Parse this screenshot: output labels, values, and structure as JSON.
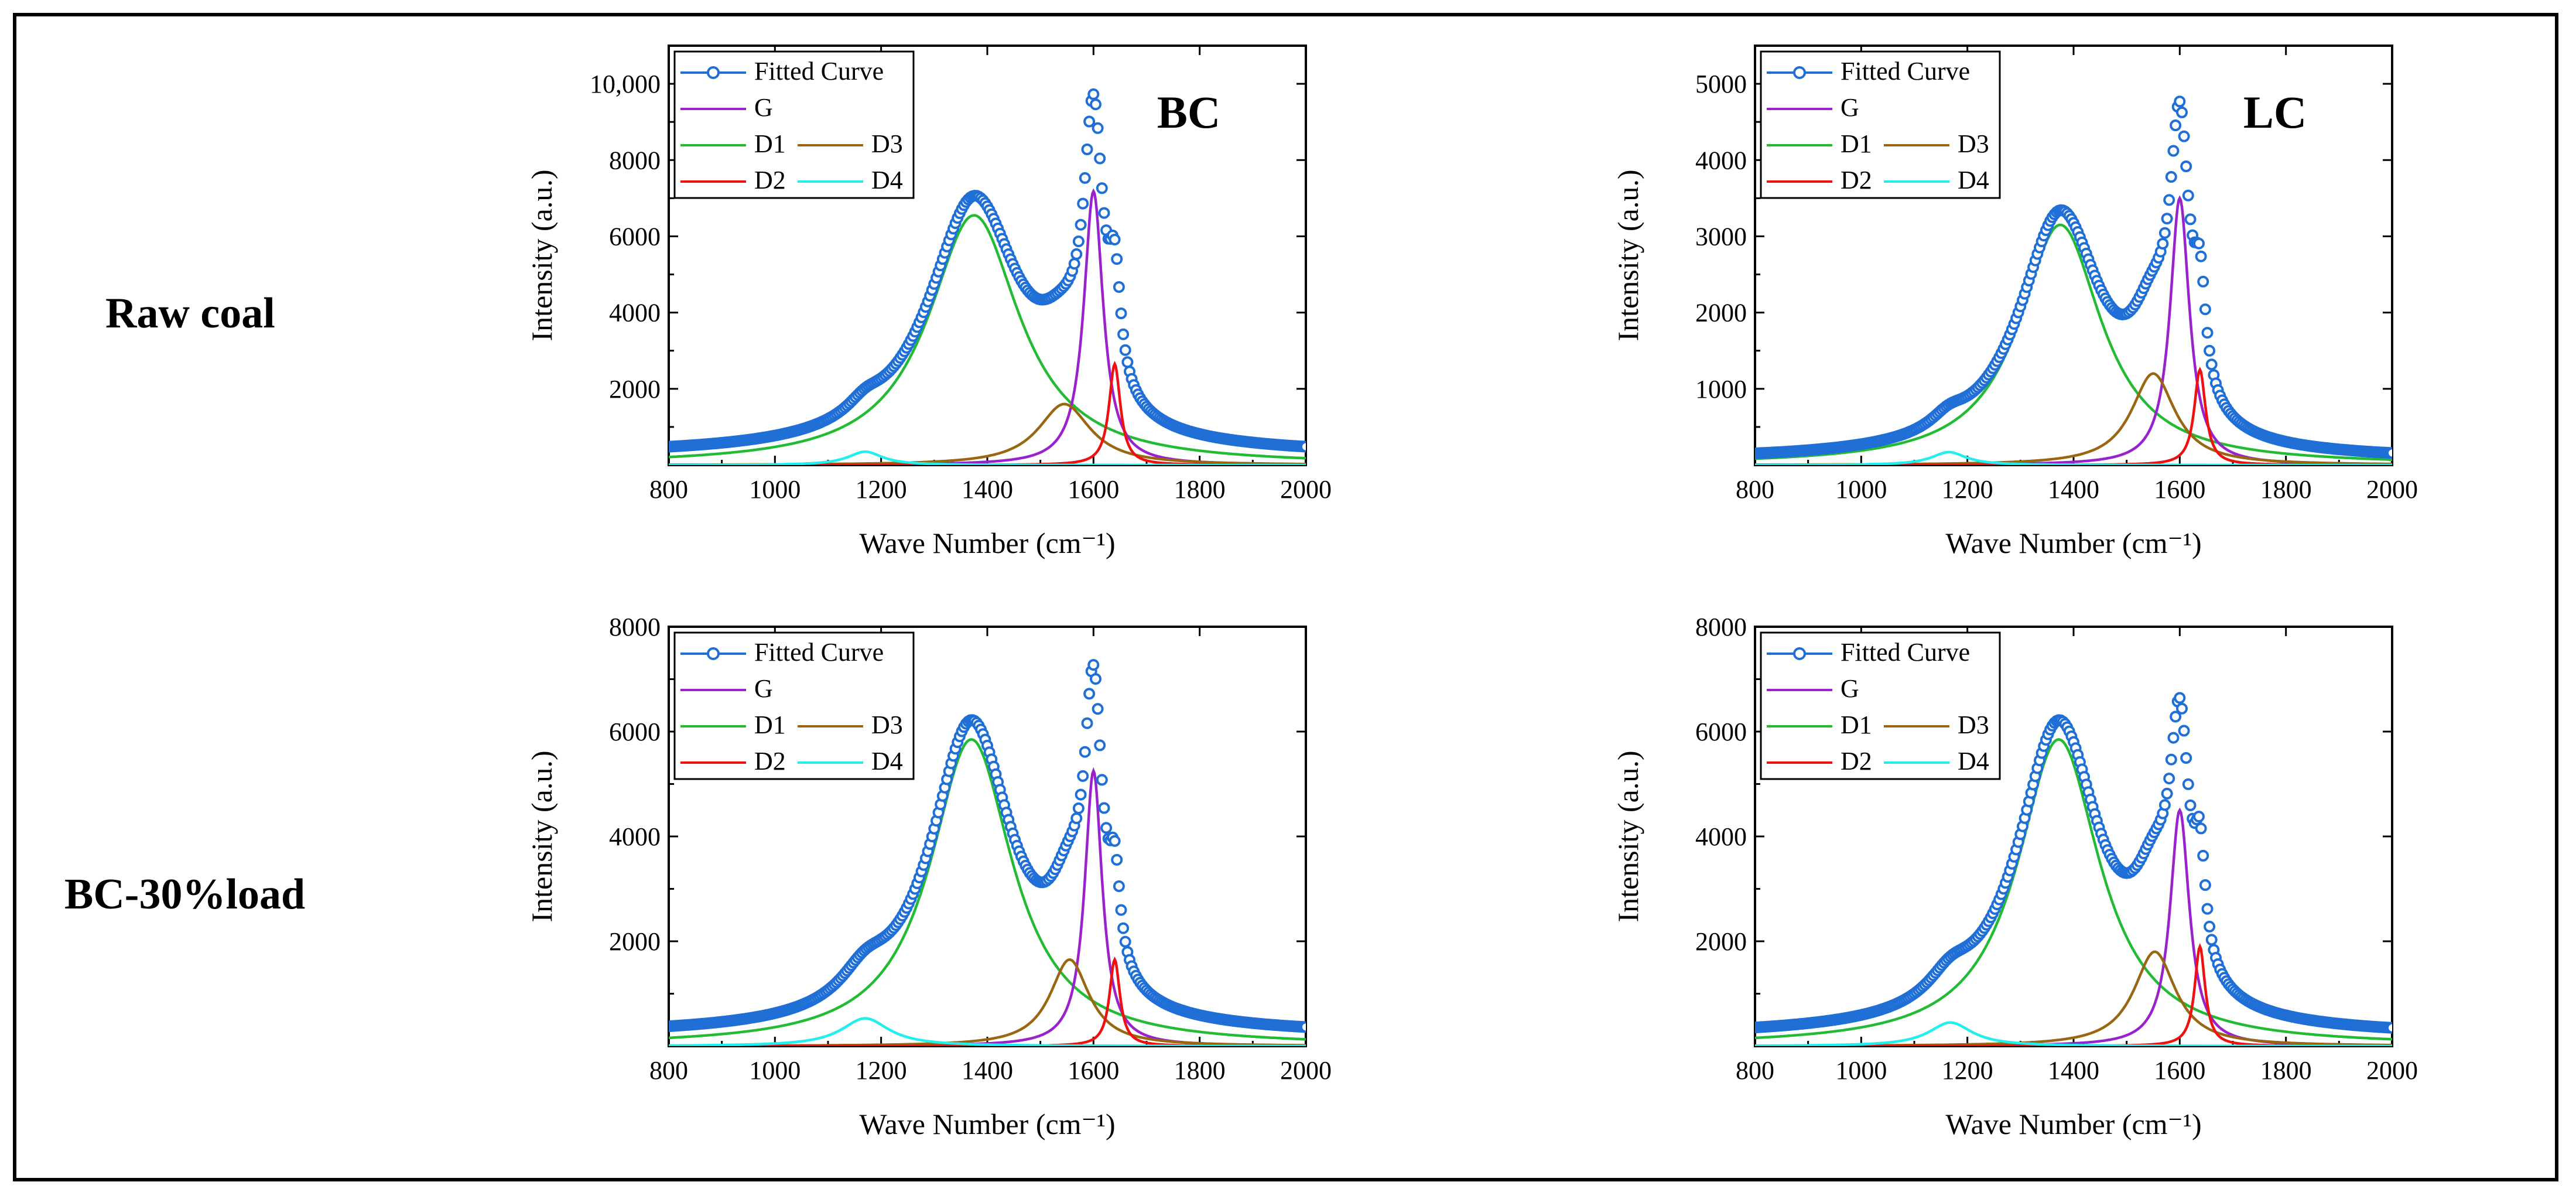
{
  "row_labels": [
    "Raw coal",
    "BC-30%load"
  ],
  "chart_data": [
    {
      "type": "line",
      "panel_label": "BC",
      "row": "Raw coal",
      "xlabel": "Wave Number (cm⁻¹)",
      "ylabel": "Intensity (a.u.)",
      "xlim": [
        800,
        2000
      ],
      "ylim": [
        0,
        11000
      ],
      "x_ticks": [
        800,
        1000,
        1200,
        1400,
        1600,
        1800,
        2000
      ],
      "y_ticks": [
        2000,
        4000,
        6000,
        8000,
        10000
      ],
      "y_tick_labels": [
        "2000",
        "4000",
        "6000",
        "8000",
        "10,000"
      ],
      "baseline": 250,
      "legend": [
        "Fitted Curve",
        "G",
        "D1",
        "D3",
        "D2",
        "D4"
      ],
      "legend_position": "top-left",
      "series": [
        {
          "name": "D1",
          "color": "#22bb33",
          "center": 1375,
          "amplitude": 6550,
          "hwhm": 105
        },
        {
          "name": "G",
          "color": "#9922cc",
          "center": 1600,
          "amplitude": 7180,
          "hwhm": 22
        },
        {
          "name": "D3",
          "color": "#996611",
          "center": 1545,
          "amplitude": 1600,
          "hwhm": 60
        },
        {
          "name": "D2",
          "color": "#ee1111",
          "center": 1640,
          "amplitude": 2650,
          "hwhm": 13
        },
        {
          "name": "D4",
          "color": "#22eeee",
          "center": 1170,
          "amplitude": 350,
          "hwhm": 40
        }
      ],
      "fitted_color": "#1f6fd6"
    },
    {
      "type": "line",
      "panel_label": "LC",
      "row": "Raw coal",
      "xlabel": "Wave Number (cm⁻¹)",
      "ylabel": "Intensity (a.u.)",
      "xlim": [
        800,
        2000
      ],
      "ylim": [
        0,
        5500
      ],
      "x_ticks": [
        800,
        1000,
        1200,
        1400,
        1600,
        1800,
        2000
      ],
      "y_ticks": [
        1000,
        2000,
        3000,
        4000,
        5000
      ],
      "y_tick_labels": [
        "1000",
        "2000",
        "3000",
        "4000",
        "5000"
      ],
      "baseline": 60,
      "legend": [
        "Fitted Curve",
        "G",
        "D1",
        "D3",
        "D2",
        "D4"
      ],
      "legend_position": "top-left",
      "series": [
        {
          "name": "D1",
          "color": "#22bb33",
          "center": 1375,
          "amplitude": 3150,
          "hwhm": 95
        },
        {
          "name": "G",
          "color": "#9922cc",
          "center": 1600,
          "amplitude": 3500,
          "hwhm": 22
        },
        {
          "name": "D3",
          "color": "#996611",
          "center": 1550,
          "amplitude": 1200,
          "hwhm": 50
        },
        {
          "name": "D2",
          "color": "#ee1111",
          "center": 1638,
          "amplitude": 1250,
          "hwhm": 13
        },
        {
          "name": "D4",
          "color": "#22eeee",
          "center": 1165,
          "amplitude": 170,
          "hwhm": 40
        }
      ],
      "fitted_color": "#1f6fd6"
    },
    {
      "type": "line",
      "panel_label": "",
      "row": "BC-30%load",
      "xlabel": "Wave Number (cm⁻¹)",
      "ylabel": "Intensity (a.u.)",
      "xlim": [
        800,
        2000
      ],
      "ylim": [
        0,
        8000
      ],
      "x_ticks": [
        800,
        1000,
        1200,
        1400,
        1600,
        1800,
        2000
      ],
      "y_ticks": [
        2000,
        4000,
        6000,
        8000
      ],
      "y_tick_labels": [
        "2000",
        "4000",
        "6000",
        "8000"
      ],
      "baseline": 200,
      "legend": [
        "Fitted Curve",
        "G",
        "D1",
        "D3",
        "D2",
        "D4"
      ],
      "legend_position": "top-left",
      "series": [
        {
          "name": "D1",
          "color": "#22bb33",
          "center": 1370,
          "amplitude": 5850,
          "hwhm": 95
        },
        {
          "name": "G",
          "color": "#9922cc",
          "center": 1600,
          "amplitude": 5250,
          "hwhm": 20
        },
        {
          "name": "D3",
          "color": "#996611",
          "center": 1555,
          "amplitude": 1650,
          "hwhm": 45
        },
        {
          "name": "D2",
          "color": "#ee1111",
          "center": 1640,
          "amplitude": 1650,
          "hwhm": 12
        },
        {
          "name": "D4",
          "color": "#22eeee",
          "center": 1170,
          "amplitude": 530,
          "hwhm": 55
        }
      ],
      "fitted_color": "#1f6fd6"
    },
    {
      "type": "line",
      "panel_label": "",
      "row": "BC-30%load",
      "xlabel": "Wave Number (cm⁻¹)",
      "ylabel": "Intensity (a.u.)",
      "xlim": [
        800,
        2000
      ],
      "ylim": [
        0,
        8000
      ],
      "x_ticks": [
        800,
        1000,
        1200,
        1400,
        1600,
        1800,
        2000
      ],
      "y_ticks": [
        2000,
        4000,
        6000,
        8000
      ],
      "y_tick_labels": [
        "2000",
        "4000",
        "6000",
        "8000"
      ],
      "baseline": 180,
      "legend": [
        "Fitted Curve",
        "G",
        "D1",
        "D3",
        "D2",
        "D4"
      ],
      "legend_position": "top-left",
      "series": [
        {
          "name": "D1",
          "color": "#22bb33",
          "center": 1372,
          "amplitude": 5850,
          "hwhm": 95
        },
        {
          "name": "G",
          "color": "#9922cc",
          "center": 1600,
          "amplitude": 4500,
          "hwhm": 22
        },
        {
          "name": "D3",
          "color": "#996611",
          "center": 1553,
          "amplitude": 1800,
          "hwhm": 48
        },
        {
          "name": "D2",
          "color": "#ee1111",
          "center": 1638,
          "amplitude": 1900,
          "hwhm": 12
        },
        {
          "name": "D4",
          "color": "#22eeee",
          "center": 1168,
          "amplitude": 450,
          "hwhm": 50
        }
      ],
      "fitted_color": "#1f6fd6"
    }
  ]
}
